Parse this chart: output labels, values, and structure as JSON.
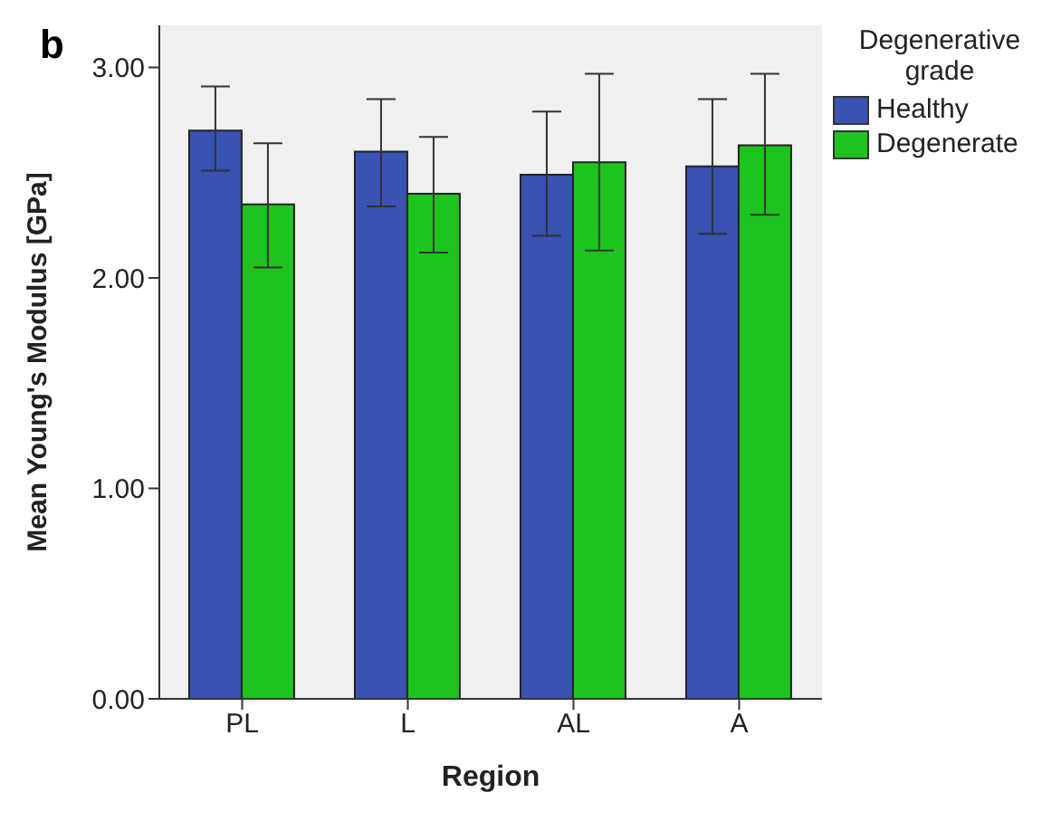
{
  "chart_data": {
    "type": "bar",
    "title": "b",
    "xlabel": "Region",
    "ylabel": "Mean Young's Modulus [GPa]",
    "legend_title": "Degenerative grade",
    "categories": [
      "PL",
      "L",
      "AL",
      "A"
    ],
    "series": [
      {
        "name": "Healthy",
        "color": "#3953b3",
        "values": [
          2.7,
          2.6,
          2.49,
          2.53
        ],
        "errors": [
          [
            2.51,
            2.91
          ],
          [
            2.34,
            2.85
          ],
          [
            2.2,
            2.79
          ],
          [
            2.21,
            2.85
          ]
        ]
      },
      {
        "name": "Degenerate",
        "color": "#1ec31e",
        "values": [
          2.35,
          2.4,
          2.55,
          2.63
        ],
        "errors": [
          [
            2.05,
            2.64
          ],
          [
            2.12,
            2.67
          ],
          [
            2.13,
            2.97
          ],
          [
            2.3,
            2.97
          ]
        ]
      }
    ],
    "ylim": [
      0,
      3.2
    ],
    "yticks": [
      {
        "value": 0,
        "label": "0.00"
      },
      {
        "value": 1,
        "label": "1.00"
      },
      {
        "value": 2,
        "label": "2.00"
      },
      {
        "value": 3,
        "label": "3.00"
      }
    ],
    "grid": false,
    "legend": "top right"
  }
}
